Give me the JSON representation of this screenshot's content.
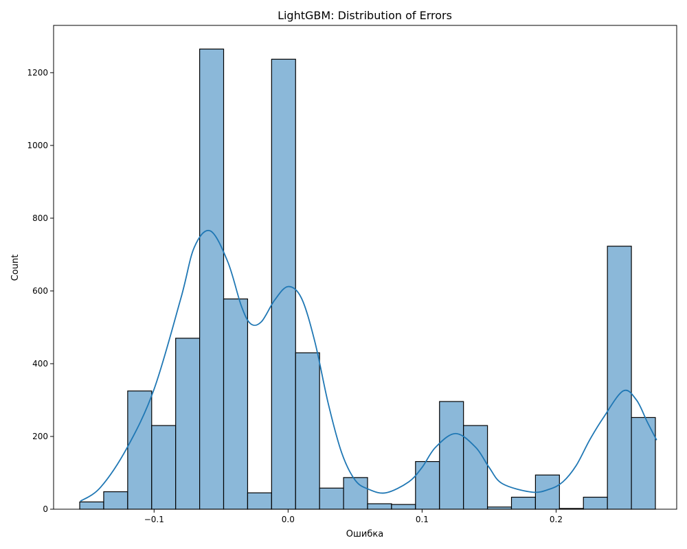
{
  "chart_data": {
    "type": "bar",
    "title": "LightGBM: Distribution of Errors",
    "xlabel": "Ошибка",
    "ylabel": "Count",
    "xlim": [
      -0.175,
      0.29
    ],
    "ylim": [
      0,
      1330
    ],
    "grid": false,
    "x_ticks": [
      {
        "value": -0.1,
        "label": "−0.1"
      },
      {
        "value": 0.0,
        "label": "0.0"
      },
      {
        "value": 0.1,
        "label": "0.1"
      },
      {
        "value": 0.2,
        "label": "0.2"
      }
    ],
    "y_ticks": [
      {
        "value": 0,
        "label": "0"
      },
      {
        "value": 200,
        "label": "200"
      },
      {
        "value": 400,
        "label": "400"
      },
      {
        "value": 600,
        "label": "600"
      },
      {
        "value": 800,
        "label": "800"
      },
      {
        "value": 1000,
        "label": "1000"
      },
      {
        "value": 1200,
        "label": "1200"
      }
    ],
    "bin_start": -0.1555,
    "bin_width": 0.0179,
    "values": [
      20,
      48,
      325,
      230,
      470,
      1265,
      578,
      45,
      1237,
      430,
      58,
      87,
      15,
      13,
      131,
      296,
      230,
      6,
      33,
      94,
      2,
      33,
      723,
      252
    ],
    "bar_color": "#8bb8d9",
    "kde": {
      "color": "#1f77b4",
      "x": [
        -0.155,
        -0.14,
        -0.12,
        -0.1,
        -0.08,
        -0.07,
        -0.058,
        -0.045,
        -0.035,
        -0.028,
        -0.02,
        -0.01,
        0.0,
        0.01,
        0.02,
        0.03,
        0.04,
        0.05,
        0.06,
        0.073,
        0.09,
        0.1,
        0.11,
        0.125,
        0.14,
        0.15,
        0.16,
        0.182,
        0.195,
        0.205,
        0.215,
        0.225,
        0.235,
        0.25,
        0.26,
        0.268,
        0.275
      ],
      "y": [
        22,
        60,
        170,
        330,
        580,
        720,
        765,
        680,
        560,
        510,
        515,
        575,
        612,
        580,
        460,
        290,
        155,
        80,
        55,
        45,
        75,
        115,
        170,
        208,
        170,
        115,
        70,
        47,
        55,
        75,
        120,
        190,
        250,
        325,
        300,
        240,
        190
      ]
    }
  }
}
